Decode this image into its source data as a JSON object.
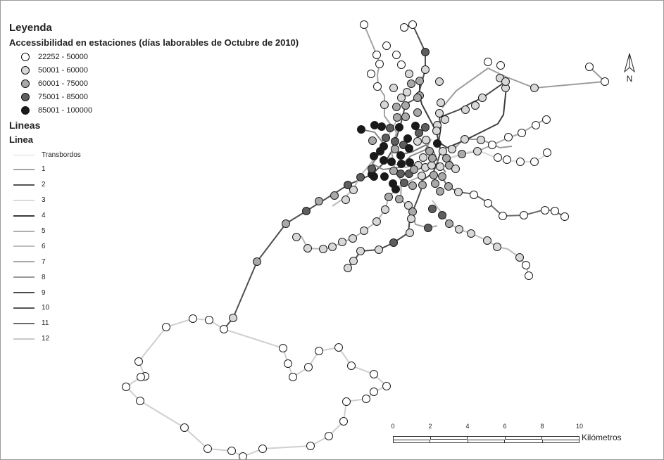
{
  "legend": {
    "title": "Leyenda",
    "subtitle": "Accessibilidad en estaciones (días laborables de Octubre de 2010)",
    "classes": [
      {
        "label": "22252 - 50000",
        "color": "#ffffff"
      },
      {
        "label": "50001 - 60000",
        "color": "#d8d8d8"
      },
      {
        "label": "60001 - 75000",
        "color": "#a9a9a9"
      },
      {
        "label": "75001 - 85000",
        "color": "#5e5e5e"
      },
      {
        "label": "85001 - 100000",
        "color": "#1a1a1a"
      }
    ],
    "lines_heading": "Lineas",
    "line_heading": "Linea",
    "lines": [
      {
        "label": "Transbordos",
        "color": "#dcdcdc"
      },
      {
        "label": "1",
        "color": "#a5a5a5"
      },
      {
        "label": "2",
        "color": "#555555"
      },
      {
        "label": "3",
        "color": "#dadada"
      },
      {
        "label": "4",
        "color": "#3a3a3a"
      },
      {
        "label": "5",
        "color": "#b0b0b0"
      },
      {
        "label": "6",
        "color": "#bdbdbd"
      },
      {
        "label": "7",
        "color": "#a8a8a8"
      },
      {
        "label": "8",
        "color": "#9a9a9a"
      },
      {
        "label": "9",
        "color": "#4a4a4a"
      },
      {
        "label": "10",
        "color": "#555555"
      },
      {
        "label": "11",
        "color": "#6a6a6a"
      },
      {
        "label": "12",
        "color": "#c8c8c8"
      }
    ]
  },
  "north_label": "N",
  "scale": {
    "ticks": [
      "0",
      "2",
      "4",
      "6",
      "8",
      "10"
    ],
    "unit": "Kilómetros"
  }
}
